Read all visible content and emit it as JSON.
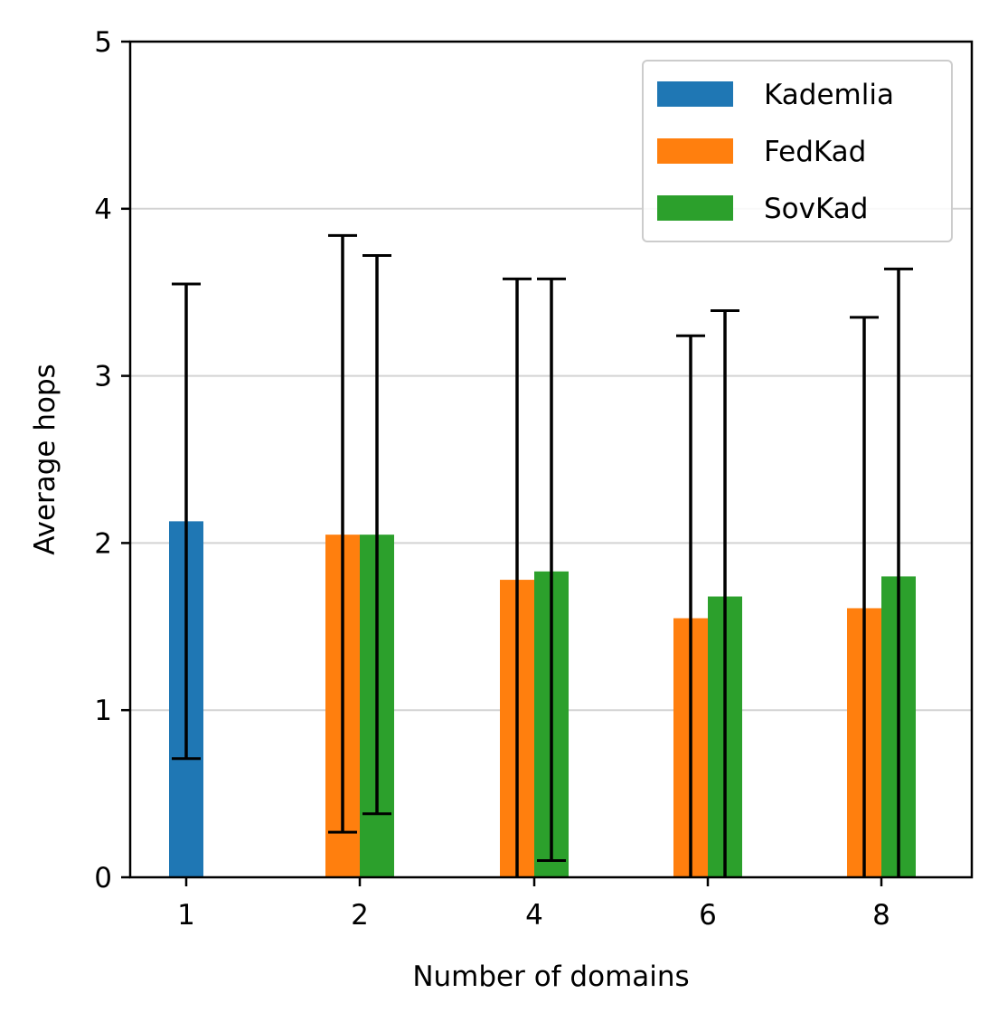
{
  "chart_data": {
    "type": "bar",
    "title": "",
    "xlabel": "Number of domains",
    "ylabel": "Average hops",
    "categories": [
      "1",
      "2",
      "4",
      "6",
      "8"
    ],
    "ylim": [
      0,
      5
    ],
    "yticks": [
      "0",
      "1",
      "2",
      "3",
      "4",
      "5"
    ],
    "grid": "horizontal",
    "legend_position": "top-right",
    "series": [
      {
        "name": "Kademlia",
        "color": "#1f77b4",
        "values": [
          2.13,
          null,
          null,
          null,
          null
        ],
        "err_low": [
          0.71,
          null,
          null,
          null,
          null
        ],
        "err_high": [
          3.55,
          null,
          null,
          null,
          null
        ]
      },
      {
        "name": "FedKad",
        "color": "#ff7f0e",
        "values": [
          null,
          2.05,
          1.78,
          1.55,
          1.61
        ],
        "err_low": [
          null,
          0.27,
          0.0,
          0.0,
          0.0
        ],
        "err_high": [
          null,
          3.84,
          3.58,
          3.24,
          3.35
        ]
      },
      {
        "name": "SovKad",
        "color": "#2ca02c",
        "values": [
          null,
          2.05,
          1.83,
          1.68,
          1.8
        ],
        "err_low": [
          null,
          0.38,
          0.1,
          0.0,
          0.0
        ],
        "err_high": [
          null,
          3.72,
          3.58,
          3.39,
          3.64
        ]
      }
    ]
  }
}
